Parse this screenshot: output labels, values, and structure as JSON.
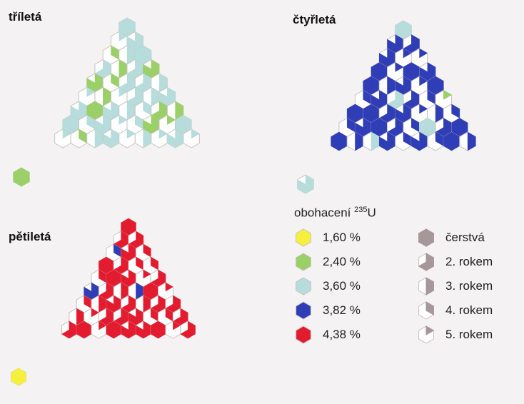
{
  "panels": {
    "three_year": {
      "title": "tříletá"
    },
    "four_year": {
      "title": "čtyřletá"
    },
    "five_year": {
      "title": "pětiletá"
    }
  },
  "legend": {
    "enrichment_heading": "obohacení",
    "enrichment_isotope": "235",
    "enrichment_element": "U",
    "enrichment": [
      {
        "label": "1,60 %",
        "color": "#f6ef3c"
      },
      {
        "label": "2,40 %",
        "color": "#9bcf68"
      },
      {
        "label": "3,60 %",
        "color": "#b6dcdb"
      },
      {
        "label": "3,82 %",
        "color": "#2f3db6"
      },
      {
        "label": "4,38 %",
        "color": "#e31b2e"
      }
    ],
    "age_icon_color": "#a7969a",
    "age": [
      {
        "label": "čerstvá",
        "filled_sixths": 6
      },
      {
        "label": "2. rokem",
        "filled_sixths": 4
      },
      {
        "label": "3. rokem",
        "filled_sixths": 3
      },
      {
        "label": "4. rokem",
        "filled_sixths": 2
      },
      {
        "label": "5. rokem",
        "filled_sixths": 1
      }
    ]
  }
}
